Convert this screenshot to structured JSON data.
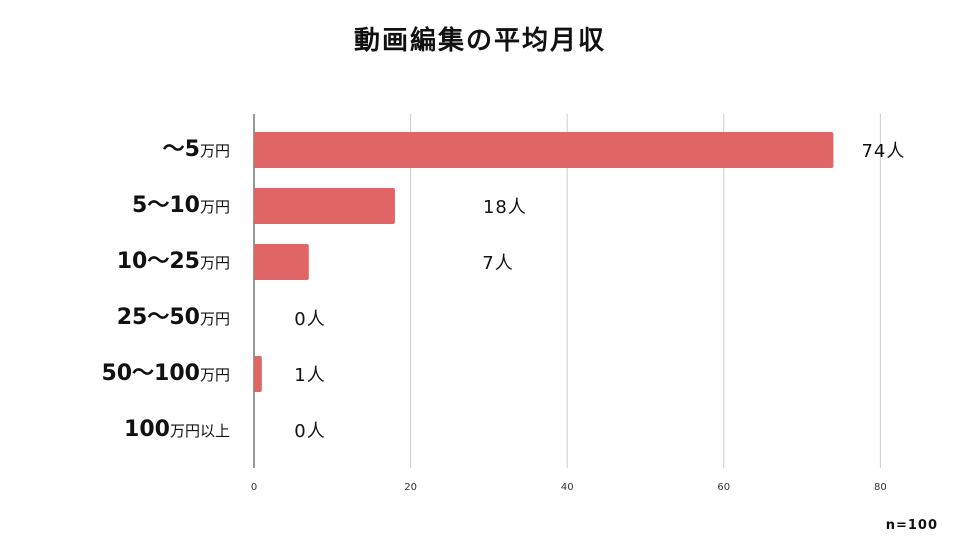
{
  "title": "動画編集の平均月収",
  "note": "n=100",
  "bar_color": "#e06666",
  "grid_color": "#cccccc",
  "chart_data": {
    "type": "bar",
    "orientation": "horizontal",
    "title": "動画編集の平均月収",
    "categories": [
      {
        "num": "〜5",
        "unit": "万円"
      },
      {
        "num": "5〜10",
        "unit": "万円"
      },
      {
        "num": "10〜25",
        "unit": "万円"
      },
      {
        "num": "25〜50",
        "unit": "万円"
      },
      {
        "num": "50〜100",
        "unit": "万円"
      },
      {
        "num": "100",
        "unit": "万円以上"
      }
    ],
    "values": [
      74,
      18,
      7,
      0,
      1,
      0
    ],
    "data_labels": [
      "74人",
      "18人",
      "7人",
      "0人",
      "1人",
      "0人"
    ],
    "xlim": [
      0,
      80
    ],
    "xticks": [
      "0",
      "20",
      "40",
      "60",
      "80"
    ],
    "grid": true
  }
}
